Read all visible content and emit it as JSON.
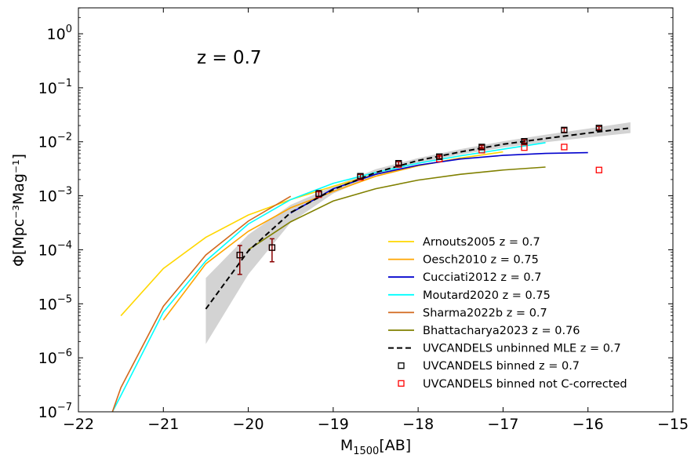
{
  "chart_data": {
    "type": "line",
    "title": "",
    "annotation": "z = 0.7",
    "xlabel": "M",
    "xlabel_sub": "1500",
    "xlabel_suffix": "[AB]",
    "ylabel": "Φ[Mpc⁻³Mag⁻¹]",
    "xlim": [
      -22,
      -15
    ],
    "ylim_log10": [
      -7,
      0.48
    ],
    "yscale": "log",
    "x_ticks": [
      -22,
      -21,
      -20,
      -19,
      -18,
      -17,
      -16,
      -15
    ],
    "x_tick_labels": [
      "−22",
      "−21",
      "−20",
      "−19",
      "−18",
      "−17",
      "−16",
      "−15"
    ],
    "y_ticks_exp": [
      -7,
      -6,
      -5,
      -4,
      -3,
      -2,
      -1,
      0
    ],
    "y_tick_labels": [
      {
        "base": "10",
        "exp": "−7"
      },
      {
        "base": "10",
        "exp": "−6"
      },
      {
        "base": "10",
        "exp": "−5"
      },
      {
        "base": "10",
        "exp": "−4"
      },
      {
        "base": "10",
        "exp": "−3"
      },
      {
        "base": "10",
        "exp": "−2"
      },
      {
        "base": "10",
        "exp": "−1"
      },
      {
        "base": "10",
        "exp": "0"
      }
    ],
    "legend_position": "lower-right",
    "series": [
      {
        "name": "Arnouts2005 z = 0.7",
        "color": "#FFD700",
        "style": "solid",
        "x": [
          -21.5,
          -21.0,
          -20.5,
          -20.0,
          -19.5,
          -19.0,
          -18.5,
          -18.0,
          -17.5,
          -17.0
        ],
        "y": [
          6e-06,
          4.5e-05,
          0.00017,
          0.00044,
          0.00085,
          0.0015,
          0.0025,
          0.0036,
          0.005,
          0.0065
        ]
      },
      {
        "name": "Oesch2010 z = 0.75",
        "color": "#FFA500",
        "style": "solid",
        "x": [
          -21.0,
          -20.5,
          -20.0,
          -19.5,
          -19.0,
          -18.5,
          -18.0,
          -17.5
        ],
        "y": [
          5e-06,
          5.5e-05,
          0.00022,
          0.0006,
          0.0012,
          0.0023,
          0.0036,
          0.005
        ]
      },
      {
        "name": "Cucciati2012 z = 0.7",
        "color": "#0000CD",
        "style": "solid",
        "x": [
          -19.5,
          -19.0,
          -18.5,
          -18.0,
          -17.5,
          -17.0,
          -16.5,
          -16.0
        ],
        "y": [
          0.00048,
          0.00135,
          0.0025,
          0.0037,
          0.0048,
          0.0056,
          0.0061,
          0.0063
        ]
      },
      {
        "name": "Moutard2020 z = 0.75",
        "color": "#00FFFF",
        "style": "solid",
        "x": [
          -21.6,
          -21.5,
          -21.0,
          -20.5,
          -20.0,
          -19.5,
          -19.0,
          -18.5,
          -18.0,
          -17.5,
          -17.0,
          -16.5
        ],
        "y": [
          1e-07,
          2e-07,
          7e-06,
          6.2e-05,
          0.0003,
          0.00085,
          0.0017,
          0.0027,
          0.004,
          0.0055,
          0.0073,
          0.0096
        ]
      },
      {
        "name": "Sharma2022b z = 0.7",
        "color": "#D2691E",
        "style": "solid",
        "x": [
          -21.6,
          -21.5,
          -21.0,
          -20.5,
          -20.0,
          -19.5
        ],
        "y": [
          1e-07,
          2.8e-07,
          9e-06,
          8e-05,
          0.00034,
          0.00098
        ]
      },
      {
        "name": "Bhattacharya2023 z = 0.76",
        "color": "#808000",
        "style": "solid",
        "x": [
          -20.0,
          -19.5,
          -19.0,
          -18.5,
          -18.0,
          -17.5,
          -17.0,
          -16.5
        ],
        "y": [
          0.0001,
          0.00033,
          0.0008,
          0.00135,
          0.00195,
          0.0025,
          0.003,
          0.0034
        ]
      },
      {
        "name": "UVCANDELS unbinned MLE z = 0.7",
        "color": "#000000",
        "style": "dashed",
        "x": [
          -20.5,
          -20.0,
          -19.5,
          -19.0,
          -18.5,
          -18.0,
          -17.5,
          -17.0,
          -16.5,
          -16.0,
          -15.5
        ],
        "y": [
          8e-06,
          9.5e-05,
          0.00049,
          0.0013,
          0.0027,
          0.0045,
          0.0065,
          0.009,
          0.0115,
          0.0145,
          0.018
        ]
      },
      {
        "name": "UVCANDELS binned z = 0.7",
        "color": "#000000",
        "style": "marker",
        "x": [
          -20.1,
          -19.72,
          -19.17,
          -18.68,
          -18.23,
          -17.75,
          -17.25,
          -16.75,
          -16.28,
          -15.87
        ],
        "y": [
          8e-05,
          0.00011,
          0.0011,
          0.0023,
          0.004,
          0.0053,
          0.008,
          0.0102,
          0.0165,
          0.018
        ],
        "yerr_low": [
          3.5e-05,
          6e-05,
          0.00095,
          0.0021,
          0.0037,
          0.0049,
          0.0074,
          0.0095,
          0.015,
          0.0168
        ],
        "yerr_high": [
          0.00012,
          0.00016,
          0.00125,
          0.0025,
          0.0043,
          0.0057,
          0.0086,
          0.0109,
          0.018,
          0.0192
        ]
      },
      {
        "name": "UVCANDELS binned not C-corrected",
        "color": "#FF0000",
        "style": "marker",
        "x": [
          -20.1,
          -19.72,
          -19.17,
          -18.68,
          -18.23,
          -17.75,
          -17.25,
          -16.75,
          -16.28,
          -15.87
        ],
        "y": [
          8e-05,
          0.00011,
          0.00105,
          0.0022,
          0.0038,
          0.0048,
          0.007,
          0.0078,
          0.008,
          0.003
        ]
      }
    ],
    "uncertainty_band": {
      "name": "UVCANDELS MLE uncertainty",
      "color": "#D3D3D3",
      "x": [
        -20.5,
        -20.0,
        -19.5,
        -19.0,
        -18.5,
        -18.0,
        -17.5,
        -17.0,
        -16.5,
        -16.0,
        -15.5
      ],
      "lower": [
        1.8e-06,
        3.5e-05,
        0.00032,
        0.0011,
        0.0024,
        0.004,
        0.0058,
        0.0078,
        0.0098,
        0.012,
        0.0145
      ],
      "upper": [
        3e-05,
        0.00019,
        0.00068,
        0.0015,
        0.0031,
        0.005,
        0.0073,
        0.0102,
        0.0135,
        0.0175,
        0.023
      ]
    }
  }
}
